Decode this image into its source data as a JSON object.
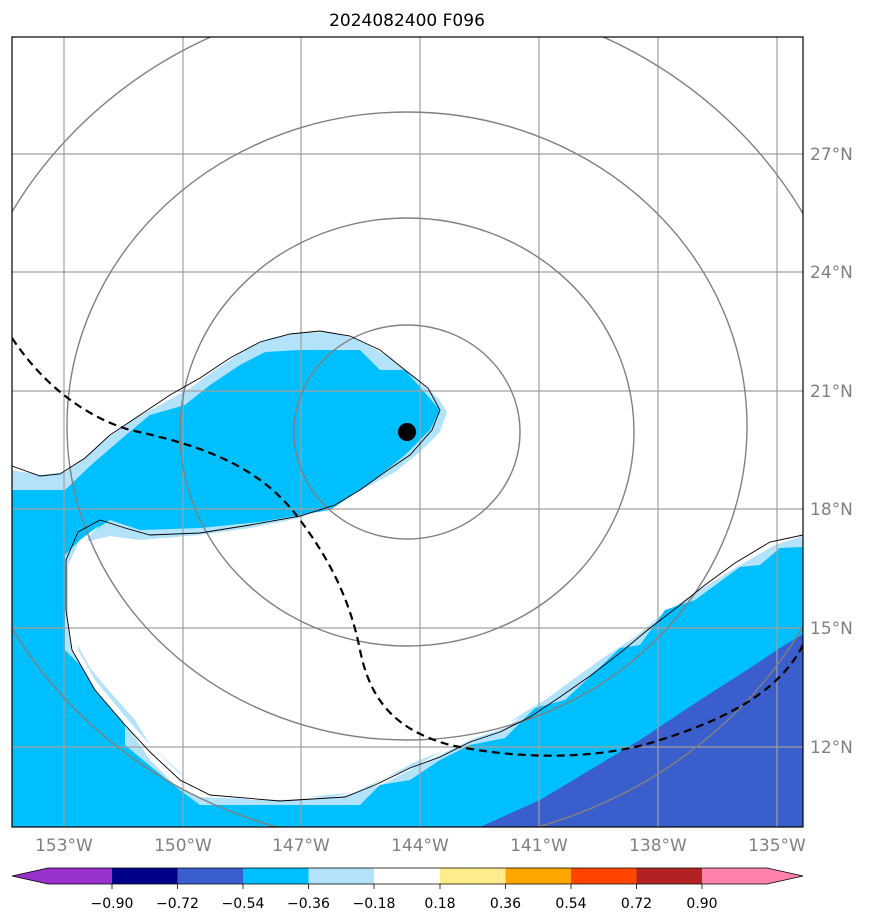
{
  "title": "2024082400 F096",
  "map": {
    "lon_labels": [
      "153°W",
      "150°W",
      "147°W",
      "144°W",
      "141°W",
      "138°W",
      "135°W"
    ],
    "lat_labels": [
      "27°N",
      "24°N",
      "21°N",
      "18°N",
      "15°N",
      "12°N"
    ],
    "storm_center": {
      "lon": -144.3,
      "lat": 20.0
    },
    "colors": {
      "gridline": "#a0a0a0",
      "range_ring": "#808080",
      "coastline": "#000000",
      "track": "#000000",
      "fill_light_blue": "#b3e2fb",
      "fill_deep_sky": "#00bfff",
      "fill_royal_blue": "#3a5fcd"
    }
  },
  "colorbar": {
    "tick_labels": [
      "−0.90",
      "−0.72",
      "−0.54",
      "−0.36",
      "−0.18",
      "0.18",
      "0.36",
      "0.54",
      "0.72",
      "0.90"
    ],
    "colors": [
      "#9932cc",
      "#00008b",
      "#3a5fcd",
      "#00bfff",
      "#b3e2fb",
      "#ffffff",
      "#ffec8b",
      "#ffa500",
      "#ff4500",
      "#b22222",
      "#ff82ab"
    ]
  }
}
